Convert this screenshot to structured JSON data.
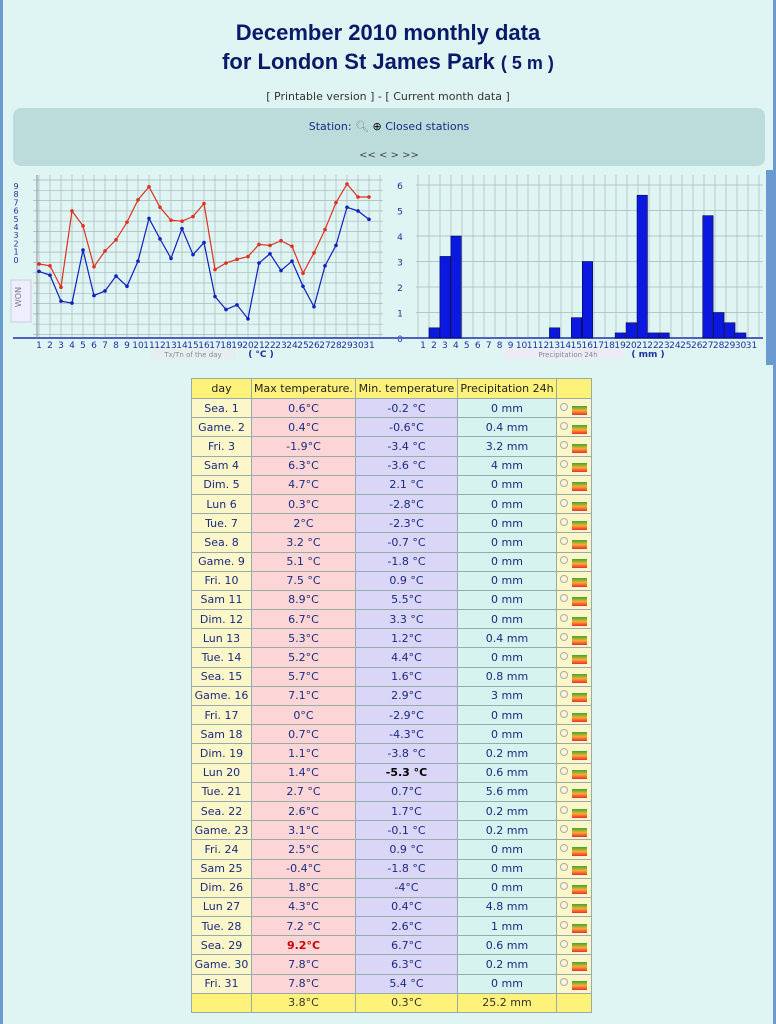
{
  "title": {
    "line1": "December 2010 monthly data",
    "line2": "for London St James Park",
    "altitude": "( 5 m )"
  },
  "links": {
    "printable": "[ Printable version ]",
    "sep": " - ",
    "current": "[ Current month data ]"
  },
  "station": {
    "label": "Station:",
    "closed": "Closed stations",
    "nav": "<< < > >>"
  },
  "chart_data": [
    {
      "type": "line",
      "x": [
        1,
        2,
        3,
        4,
        5,
        6,
        7,
        8,
        9,
        10,
        11,
        12,
        13,
        14,
        15,
        16,
        17,
        18,
        19,
        20,
        21,
        22,
        23,
        24,
        25,
        26,
        27,
        28,
        29,
        30,
        31
      ],
      "series": [
        {
          "name": "Tx",
          "color": "#e03020",
          "values": [
            0.6,
            0.4,
            -1.9,
            6.3,
            4.7,
            0.3,
            2,
            3.2,
            5.1,
            7.5,
            8.9,
            6.7,
            5.3,
            5.2,
            5.7,
            7.1,
            0,
            0.7,
            1.1,
            1.4,
            2.7,
            2.6,
            3.1,
            2.5,
            -0.4,
            1.8,
            4.3,
            7.2,
            9.2,
            7.8,
            7.8
          ]
        },
        {
          "name": "Tn",
          "color": "#1020c0",
          "values": [
            -0.2,
            -0.6,
            -3.4,
            -3.6,
            2.1,
            -2.8,
            -2.3,
            -0.7,
            -1.8,
            0.9,
            5.5,
            3.3,
            1.2,
            4.4,
            1.6,
            2.9,
            -2.9,
            -4.3,
            -3.8,
            -5.3,
            0.7,
            1.7,
            -0.1,
            0.9,
            -1.8,
            -4,
            0.4,
            2.6,
            6.7,
            6.3,
            5.4
          ]
        }
      ],
      "ytick_labels": [
        "9",
        "8",
        "7",
        "6",
        "5",
        "4",
        "3",
        "2",
        "1",
        "0"
      ],
      "xlabel": "Tx/Tn of the day",
      "unit": "( °C )",
      "side_label": "WON",
      "grid": true
    },
    {
      "type": "bar",
      "x": [
        1,
        2,
        3,
        4,
        5,
        6,
        7,
        8,
        9,
        10,
        11,
        12,
        13,
        14,
        15,
        16,
        17,
        18,
        19,
        20,
        21,
        22,
        23,
        24,
        25,
        26,
        27,
        28,
        29,
        30,
        31
      ],
      "values": [
        0,
        0.4,
        3.2,
        4,
        0,
        0,
        0,
        0,
        0,
        0,
        0,
        0,
        0.4,
        0,
        0.8,
        3,
        0,
        0,
        0.2,
        0.6,
        5.6,
        0.2,
        0.2,
        0,
        0,
        0,
        4.8,
        1,
        0.6,
        0.2,
        0
      ],
      "ylim": [
        0,
        6
      ],
      "yticks": [
        "0",
        "1",
        "2",
        "3",
        "4",
        "5",
        "6"
      ],
      "xlabel": "Precipitation 24h",
      "unit": "( mm )",
      "color": "#0a18e0",
      "grid": true
    }
  ],
  "table": {
    "headers": [
      "day",
      "Max temperature.",
      "Min. temperature",
      "Precipitation 24h",
      ""
    ],
    "rows": [
      [
        "Sea. 1",
        "0.6°C",
        "-0.2 °C",
        "0 mm"
      ],
      [
        "Game. 2",
        "0.4°C",
        "-0.6°C",
        "0.4 mm"
      ],
      [
        "Fri. 3",
        "-1.9°C",
        "-3.4 °C",
        "3.2 mm"
      ],
      [
        "Sam 4",
        "6.3°C",
        "-3.6 °C",
        "4 mm"
      ],
      [
        "Dim. 5",
        "4.7°C",
        "2.1 °C",
        "0 mm"
      ],
      [
        "Lun 6",
        "0.3°C",
        "-2.8°C",
        "0 mm"
      ],
      [
        "Tue. 7",
        "2°C",
        "-2.3°C",
        "0 mm"
      ],
      [
        "Sea. 8",
        "3.2 °C",
        "-0.7 °C",
        "0 mm"
      ],
      [
        "Game. 9",
        "5.1 °C",
        "-1.8 °C",
        "0 mm"
      ],
      [
        "Fri. 10",
        "7.5 °C",
        "0.9 °C",
        "0 mm"
      ],
      [
        "Sam 11",
        "8.9°C",
        "5.5°C",
        "0 mm"
      ],
      [
        "Dim. 12",
        "6.7°C",
        "3.3 °C",
        "0 mm"
      ],
      [
        "Lun 13",
        "5.3°C",
        "1.2°C",
        "0.4 mm"
      ],
      [
        "Tue. 14",
        "5.2°C",
        "4.4°C",
        "0 mm"
      ],
      [
        "Sea. 15",
        "5.7°C",
        "1.6°C",
        "0.8 mm"
      ],
      [
        "Game. 16",
        "7.1°C",
        "2.9°C",
        "3 mm"
      ],
      [
        "Fri. 17",
        "0°C",
        "-2.9°C",
        "0 mm"
      ],
      [
        "Sam 18",
        "0.7°C",
        "-4.3°C",
        "0 mm"
      ],
      [
        "Dim. 19",
        "1.1°C",
        "-3.8 °C",
        "0.2 mm"
      ],
      [
        "Lun 20",
        "1.4°C",
        "-5.3 °C",
        "0.6 mm"
      ],
      [
        "Tue. 21",
        "2.7 °C",
        "0.7°C",
        "5.6 mm"
      ],
      [
        "Sea. 22",
        "2.6°C",
        "1.7°C",
        "0.2 mm"
      ],
      [
        "Game. 23",
        "3.1°C",
        "-0.1 °C",
        "0.2 mm"
      ],
      [
        "Fri. 24",
        "2.5°C",
        "0.9 °C",
        "0 mm"
      ],
      [
        "Sam 25",
        "-0.4°C",
        "-1.8 °C",
        "0 mm"
      ],
      [
        "Dim. 26",
        "1.8°C",
        "-4°C",
        "0 mm"
      ],
      [
        "Lun 27",
        "4.3°C",
        "0.4°C",
        "4.8 mm"
      ],
      [
        "Tue. 28",
        "7.2 °C",
        "2.6°C",
        "1 mm"
      ],
      [
        "Sea. 29",
        "9.2°C",
        "6.7°C",
        "0.6 mm"
      ],
      [
        "Game. 30",
        "7.8°C",
        "6.3°C",
        "0.2 mm"
      ],
      [
        "Fri. 31",
        "7.8°C",
        "5.4 °C",
        "0 mm"
      ]
    ],
    "highlight": {
      "max_row": 28,
      "min_row": 19
    },
    "footer": [
      "",
      "3.8°C",
      "0.3°C",
      "25.2 mm",
      ""
    ]
  }
}
